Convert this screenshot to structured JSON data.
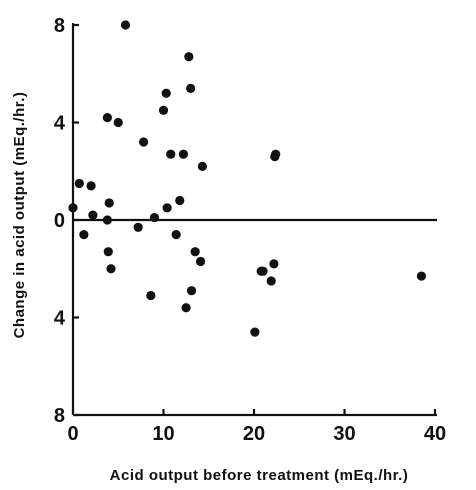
{
  "chart_data": {
    "type": "scatter",
    "title": "",
    "xlabel": "Acid output before treatment  (mEq./hr.)",
    "ylabel": "Change in acid output  (mEq./hr.)",
    "xlim": [
      0,
      40
    ],
    "ylim": [
      -8,
      8
    ],
    "x_ticks": [
      0,
      10,
      20,
      30,
      40
    ],
    "x_tick_labels": [
      "0",
      "10",
      "20",
      "30",
      "40"
    ],
    "y_ticks": [
      8,
      4,
      0,
      -4,
      -8
    ],
    "y_tick_labels": [
      "8",
      "4",
      "0",
      "4",
      "8"
    ],
    "grid": false,
    "legend": "none",
    "reference_line_y": 0,
    "points": [
      [
        0.0,
        0.5
      ],
      [
        0.7,
        1.5
      ],
      [
        1.2,
        -0.6
      ],
      [
        2.0,
        1.4
      ],
      [
        2.2,
        0.2
      ],
      [
        3.8,
        4.2
      ],
      [
        3.8,
        0.0
      ],
      [
        3.9,
        -1.3
      ],
      [
        4.0,
        0.7
      ],
      [
        4.2,
        -2.0
      ],
      [
        5.0,
        4.0
      ],
      [
        5.8,
        8.0
      ],
      [
        7.2,
        -0.3
      ],
      [
        7.8,
        3.2
      ],
      [
        8.6,
        -3.1
      ],
      [
        9.0,
        0.1
      ],
      [
        10.0,
        4.5
      ],
      [
        10.3,
        5.2
      ],
      [
        10.4,
        0.5
      ],
      [
        10.8,
        2.7
      ],
      [
        11.4,
        -0.6
      ],
      [
        11.8,
        0.8
      ],
      [
        12.2,
        2.7
      ],
      [
        12.5,
        -3.6
      ],
      [
        12.8,
        6.7
      ],
      [
        13.0,
        5.4
      ],
      [
        13.1,
        -2.9
      ],
      [
        13.5,
        -1.3
      ],
      [
        14.1,
        -1.7
      ],
      [
        14.3,
        2.2
      ],
      [
        20.1,
        -4.6
      ],
      [
        20.8,
        -2.1
      ],
      [
        21.0,
        -2.1
      ],
      [
        21.9,
        -2.5
      ],
      [
        22.2,
        -1.8
      ],
      [
        22.3,
        2.6
      ],
      [
        22.4,
        2.7
      ],
      [
        38.5,
        -2.3
      ]
    ]
  }
}
